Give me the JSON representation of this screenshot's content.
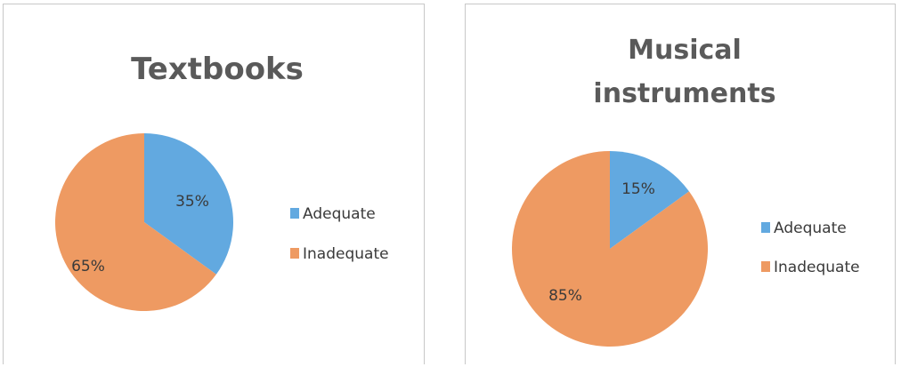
{
  "colors": {
    "adequate": "#62a9e0",
    "inadequate": "#ee9a62"
  },
  "chart_data": [
    {
      "type": "pie",
      "title": "Textbooks",
      "labels": [
        "Adequate",
        "Inadequate"
      ],
      "values": [
        35,
        65
      ],
      "data_labels": [
        "35%",
        "65%"
      ],
      "legend_position": "right"
    },
    {
      "type": "pie",
      "title": "Musical instruments",
      "labels": [
        "Adequate",
        "Inadequate"
      ],
      "values": [
        15,
        85
      ],
      "data_labels": [
        "15%",
        "85%"
      ],
      "legend_position": "right"
    }
  ]
}
